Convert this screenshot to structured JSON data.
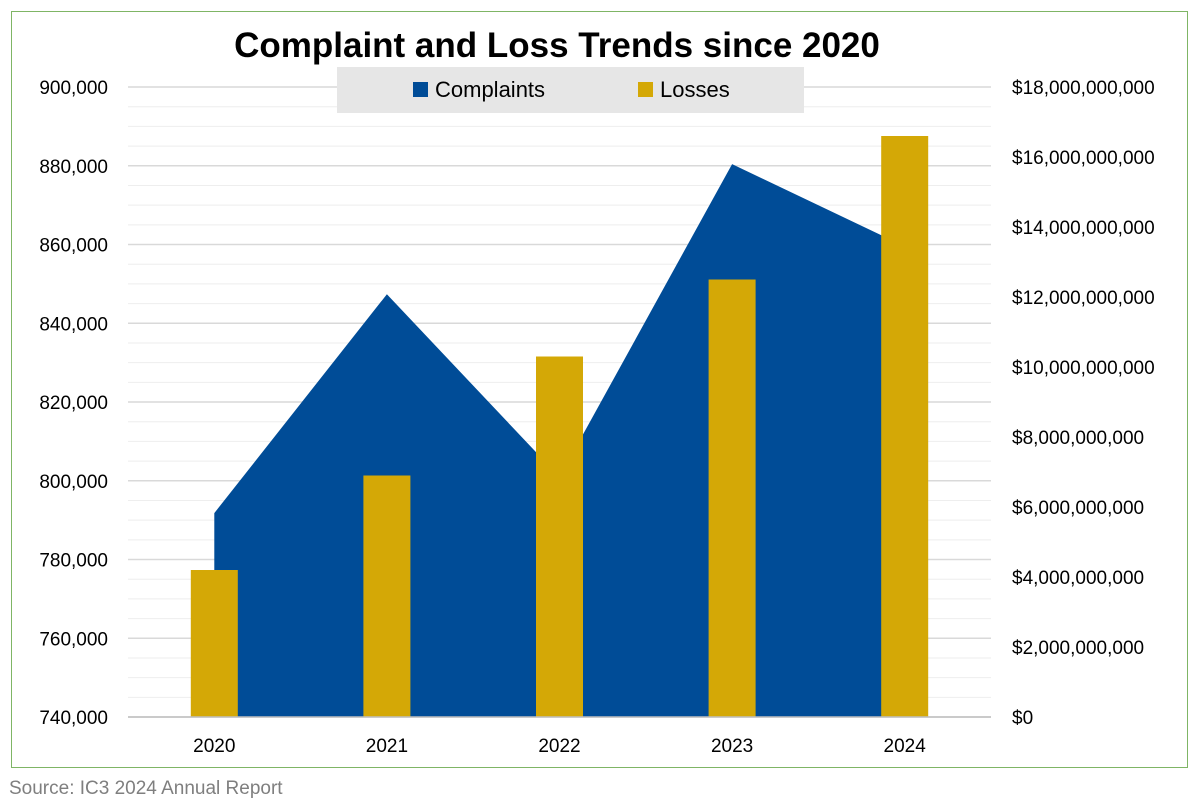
{
  "chart_data": {
    "type": "area+bar",
    "title": "Complaint and Loss Trends since 2020",
    "categories": [
      "2020",
      "2021",
      "2022",
      "2023",
      "2024"
    ],
    "series": [
      {
        "name": "Complaints",
        "type": "area",
        "axis": "left",
        "color": "#004c97",
        "values": [
          791790,
          847376,
          800944,
          880418,
          859532
        ]
      },
      {
        "name": "Losses",
        "type": "bar",
        "axis": "right",
        "color": "#d4a806",
        "values": [
          4200000000,
          6900000000,
          10300000000,
          12500000000,
          16600000000
        ]
      }
    ],
    "y_left": {
      "min": 740000,
      "max": 900000,
      "ticks": [
        "740,000",
        "760,000",
        "780,000",
        "800,000",
        "820,000",
        "840,000",
        "860,000",
        "880,000",
        "900,000"
      ]
    },
    "y_right": {
      "min": 0,
      "max": 18000000000,
      "ticks": [
        "$0",
        "$2,000,000,000",
        "$4,000,000,000",
        "$6,000,000,000",
        "$8,000,000,000",
        "$10,000,000,000",
        "$12,000,000,000",
        "$14,000,000,000",
        "$16,000,000,000",
        "$18,000,000,000"
      ]
    },
    "grid": true,
    "legend_position": "top"
  },
  "source": "Source: IC3 2024 Annual Report",
  "colors": {
    "legend_bg": "#e6e6e6",
    "grid": "#d9d9d9",
    "frame": "#7fb565"
  }
}
